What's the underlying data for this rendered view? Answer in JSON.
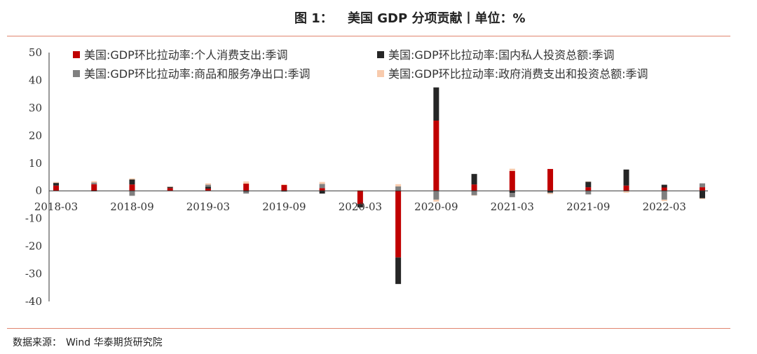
{
  "header": {
    "figure_label": "图 1：",
    "figure_title": "美国 GDP 分项贡献丨单位：%"
  },
  "footer": {
    "source_label": "数据来源：",
    "source_text": "Wind  华泰期货研究院"
  },
  "colors": {
    "consumption": "#c00000",
    "investment": "#262626",
    "net_exports": "#808080",
    "government": "#f8cbad",
    "rule": "#e0846f"
  },
  "chart_data": {
    "type": "bar",
    "stacked": true,
    "x": [
      "2018-03",
      "2018-06",
      "2018-09",
      "2018-12",
      "2019-03",
      "2019-06",
      "2019-09",
      "2019-12",
      "2020-03",
      "2020-06",
      "2020-09",
      "2020-12",
      "2021-03",
      "2021-06",
      "2021-09",
      "2021-12",
      "2022-03",
      "2022-06"
    ],
    "x_tick_labels": [
      "2018-03",
      "2018-09",
      "2019-03",
      "2019-09",
      "2020-03",
      "2020-09",
      "2021-03",
      "2021-09",
      "2022-03"
    ],
    "ylim": [
      -40,
      50
    ],
    "y_ticks": [
      50,
      40,
      30,
      20,
      10,
      0,
      -10,
      -20,
      -30,
      -40
    ],
    "legend_position": "top",
    "series": [
      {
        "name": "美国:GDP环比拉动率:个人消费支出:季调",
        "color_key": "consumption",
        "values": [
          1.9,
          2.4,
          2.3,
          1.0,
          0.8,
          2.6,
          2.1,
          1.0,
          -4.8,
          -24.1,
          25.4,
          2.3,
          7.2,
          7.9,
          1.3,
          1.9,
          1.2,
          1.3
        ]
      },
      {
        "name": "美国:GDP环比拉动率:国内私人投资总额:季调",
        "color_key": "investment",
        "values": [
          1.0,
          -0.2,
          1.8,
          0.5,
          0.7,
          -0.3,
          -0.2,
          -1.0,
          -1.2,
          -9.6,
          12.0,
          3.8,
          -0.7,
          -0.6,
          2.0,
          5.8,
          1.0,
          -2.7
        ]
      },
      {
        "name": "美国:GDP环比拉动率:商品和服务净出口:季调",
        "color_key": "net_exports",
        "values": [
          0.0,
          0.6,
          -1.8,
          0.0,
          0.7,
          -0.7,
          -0.1,
          1.5,
          0.1,
          1.6,
          -3.2,
          -1.6,
          -1.6,
          -0.2,
          -1.3,
          -0.2,
          -3.2,
          1.4
        ]
      },
      {
        "name": "美国:GDP环比拉动率:政府消费支出和投资总额:季调",
        "color_key": "government",
        "values": [
          0.3,
          0.5,
          0.4,
          0.0,
          0.5,
          0.8,
          0.3,
          0.7,
          0.2,
          0.8,
          -0.7,
          -0.1,
          0.8,
          -0.4,
          0.1,
          -0.5,
          -0.5,
          -0.3
        ]
      }
    ]
  }
}
